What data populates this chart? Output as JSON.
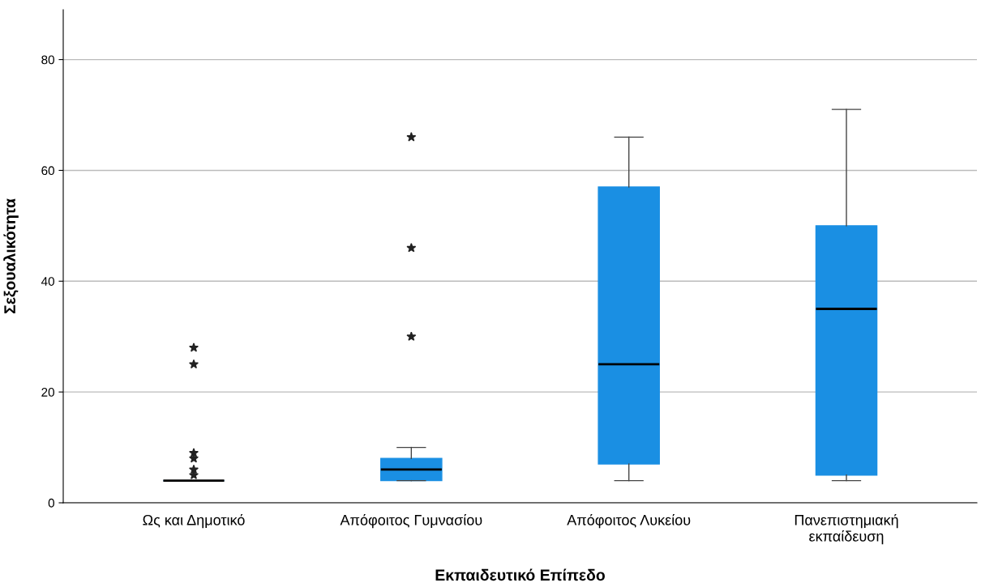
{
  "chart_data": {
    "type": "box",
    "xlabel": "Εκπαιδευτικό Επίπεδο",
    "ylabel": "Σεξουαλικότητα",
    "categories": [
      "Ως και Δημοτικό",
      "Απόφοιτος Γυμνασίου",
      "Απόφοιτος Λυκείου",
      "Πανεπιστημιακή\nεκπαίδευση"
    ],
    "color": "#1a8fe3",
    "boxes": [
      {
        "low": 4,
        "q1": 4,
        "median": 4,
        "q3": 4,
        "high": 4,
        "outliers": [
          28,
          25,
          9,
          8,
          6,
          5
        ]
      },
      {
        "low": 4,
        "q1": 4,
        "median": 6,
        "q3": 8,
        "high": 10,
        "outliers": [
          66,
          46,
          30
        ]
      },
      {
        "low": 4,
        "q1": 7,
        "median": 25,
        "q3": 57,
        "high": 66
      },
      {
        "low": 4,
        "q1": 5,
        "median": 35,
        "q3": 50,
        "high": 71
      }
    ],
    "marker": "star",
    "ylim": [
      0,
      89
    ],
    "yticks": [
      0,
      20,
      40,
      60,
      80
    ],
    "grid": "y"
  }
}
